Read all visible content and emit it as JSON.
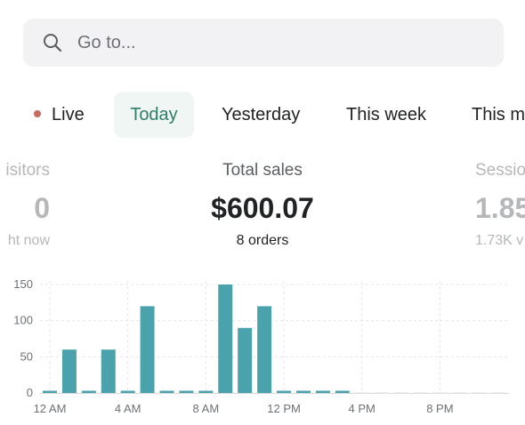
{
  "search": {
    "placeholder": "Go to..."
  },
  "tabs": [
    {
      "label": "Live"
    },
    {
      "label": "Today"
    },
    {
      "label": "Yesterday"
    },
    {
      "label": "This week"
    },
    {
      "label": "This m"
    }
  ],
  "metrics": {
    "left": {
      "label": "isitors",
      "value": "0",
      "sub": "ht now"
    },
    "center": {
      "label": "Total sales",
      "value": "$600.07",
      "sub": "8 orders"
    },
    "right": {
      "label": "Sessio",
      "value": "1.85",
      "sub": "1.73K v"
    }
  },
  "colors": {
    "bar": "#4aa3ac",
    "active_tab_text": "#2e7d67",
    "live_dot": "#c96a5f"
  },
  "chart_data": {
    "type": "bar",
    "categories": [
      "12 AM",
      "1 AM",
      "2 AM",
      "3 AM",
      "4 AM",
      "5 AM",
      "6 AM",
      "7 AM",
      "8 AM",
      "9 AM",
      "10 AM",
      "11 AM",
      "12 PM",
      "1 PM",
      "2 PM",
      "3 PM",
      "4 PM",
      "5 PM",
      "6 PM",
      "7 PM",
      "8 PM",
      "9 PM",
      "10 PM",
      "11 PM"
    ],
    "values": [
      0,
      60,
      0,
      60,
      0,
      120,
      0,
      0,
      0,
      150,
      90,
      120,
      0,
      0,
      0,
      0,
      null,
      null,
      null,
      null,
      null,
      null,
      null,
      null
    ],
    "x_tick_labels": [
      "12 AM",
      "4 AM",
      "8 AM",
      "12 PM",
      "4 PM",
      "8 PM"
    ],
    "y_ticks": [
      "0",
      "50",
      "100",
      "150"
    ],
    "ylim": [
      0,
      160
    ],
    "grid": true
  }
}
